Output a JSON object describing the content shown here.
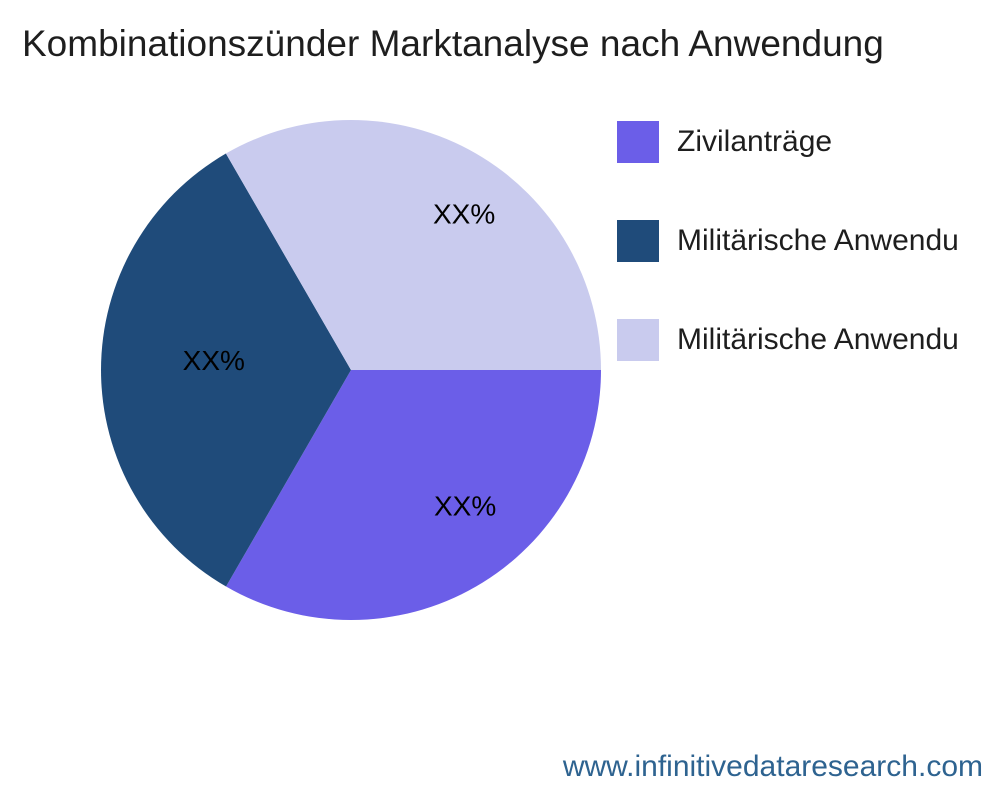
{
  "page": {
    "title": "Kombinationszünder Marktanalyse nach Anwendung",
    "footer_url": "www.infinitivedataresearch.com",
    "background_color": "#ffffff"
  },
  "colors": {
    "title_text": "#1e1e1e",
    "slice_label_text": "#000000",
    "footer_text": "#2e6390"
  },
  "legend": {
    "position": "right",
    "items": [
      {
        "label": "Zivilanträge",
        "color": "#6b5ee8"
      },
      {
        "label": "Militärische Anwendu",
        "color": "#1f4b7a"
      },
      {
        "label": "Militärische Anwendu",
        "color": "#c9cbee"
      }
    ]
  },
  "chart_data": {
    "type": "pie",
    "title": "Kombinationszünder Marktanalyse nach Anwendung",
    "categories": [
      "Zivilanträge",
      "Militärische Anwendu",
      "Militärische Anwendu"
    ],
    "values": [
      33.33,
      33.33,
      33.34
    ],
    "value_labels": [
      "XX%",
      "XX%",
      "XX%"
    ],
    "colors": [
      "#6b5ee8",
      "#1f4b7a",
      "#c9cbee"
    ],
    "start_angle_deg": 0,
    "direction": "clockwise",
    "legend_position": "right"
  }
}
